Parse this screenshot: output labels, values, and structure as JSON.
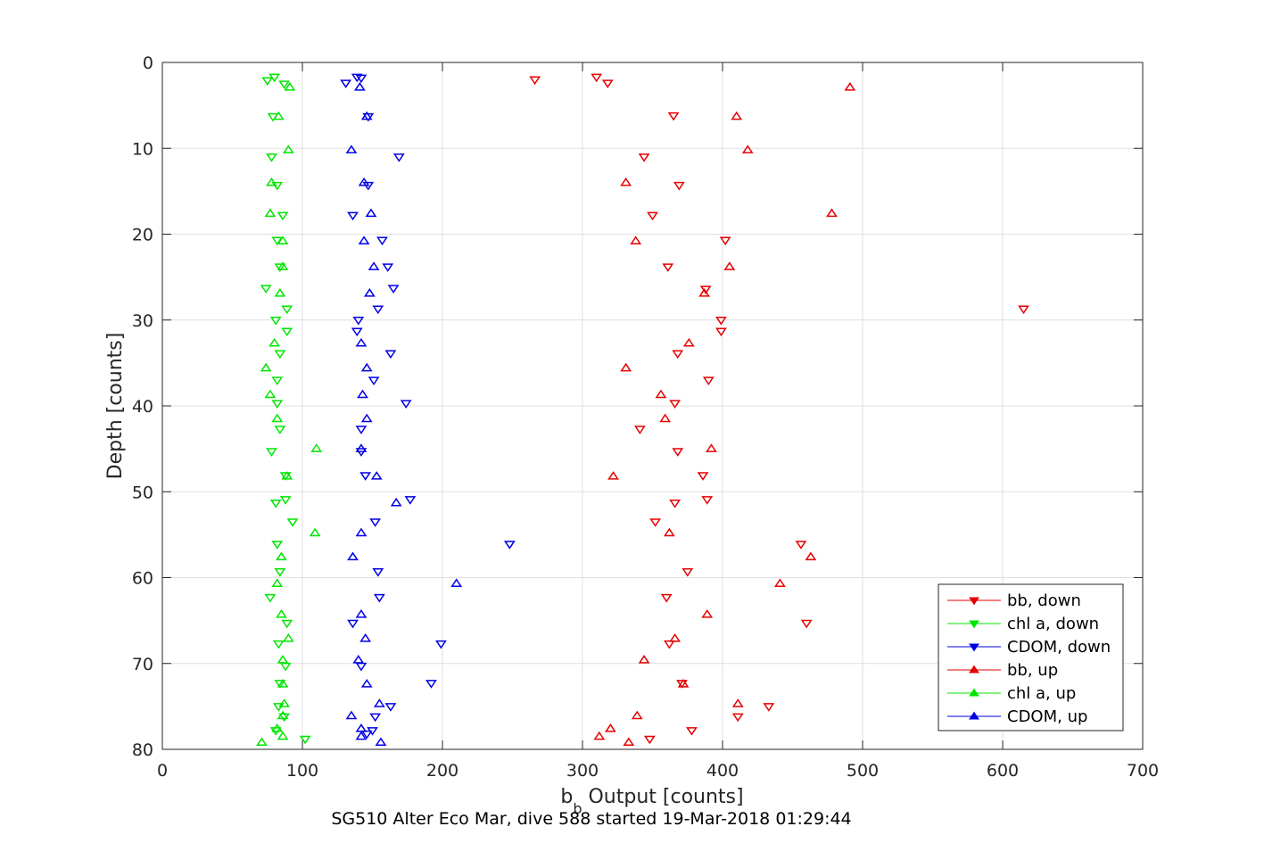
{
  "colors": {
    "bb": "#e60000",
    "chl": "#00e600",
    "cdom": "#0000e6",
    "grid": "#dfdfdf",
    "axis": "#262626"
  },
  "chart_data": {
    "type": "scatter",
    "title": "SG510 Alter Eco Mar, dive 588 started 19-Mar-2018 01:29:44",
    "xlabel_main": "b",
    "xlabel_sub": "b",
    "xlabel_rest": " Output [counts]",
    "ylabel": "Depth [counts]",
    "xlim": [
      0,
      700
    ],
    "ylim": [
      0,
      80
    ],
    "y_reversed": true,
    "grid": true,
    "legend_position": "bottom-right",
    "xticks": [
      0,
      100,
      200,
      300,
      400,
      500,
      600,
      700
    ],
    "yticks": [
      0,
      10,
      20,
      30,
      40,
      50,
      60,
      70,
      80
    ],
    "series": [
      {
        "name": "bb, down",
        "marker": "triangle-down",
        "color": "#e60000",
        "points": [
          [
            266,
            2
          ],
          [
            310,
            1.7
          ],
          [
            318,
            2.4
          ],
          [
            365,
            6.2
          ],
          [
            344,
            11
          ],
          [
            369,
            14.3
          ],
          [
            350,
            17.8
          ],
          [
            402,
            20.7
          ],
          [
            361,
            23.8
          ],
          [
            388,
            26.4
          ],
          [
            399,
            30
          ],
          [
            399,
            31.3
          ],
          [
            368,
            33.9
          ],
          [
            390,
            37
          ],
          [
            366,
            39.7
          ],
          [
            341,
            42.7
          ],
          [
            368,
            45.3
          ],
          [
            386,
            48.1
          ],
          [
            389,
            50.9
          ],
          [
            366,
            51.3
          ],
          [
            352,
            53.5
          ],
          [
            456,
            56.1
          ],
          [
            375,
            59.3
          ],
          [
            360,
            62.3
          ],
          [
            460,
            65.3
          ],
          [
            362,
            67.7
          ],
          [
            371,
            72.3
          ],
          [
            433,
            75
          ],
          [
            411,
            76.2
          ],
          [
            378,
            77.8
          ],
          [
            348,
            78.8
          ],
          [
            615,
            28.7
          ]
        ]
      },
      {
        "name": "chl a, down",
        "marker": "triangle-down",
        "color": "#00e600",
        "points": [
          [
            75,
            2.1
          ],
          [
            80,
            1.7
          ],
          [
            87,
            2.5
          ],
          [
            79,
            6.3
          ],
          [
            78,
            11
          ],
          [
            82,
            14.3
          ],
          [
            86,
            17.8
          ],
          [
            82,
            20.7
          ],
          [
            84,
            23.8
          ],
          [
            74,
            26.3
          ],
          [
            89,
            28.7
          ],
          [
            81,
            30
          ],
          [
            89,
            31.3
          ],
          [
            84,
            33.9
          ],
          [
            82,
            37
          ],
          [
            82,
            39.7
          ],
          [
            84,
            42.7
          ],
          [
            78,
            45.3
          ],
          [
            88,
            48.1
          ],
          [
            88,
            50.9
          ],
          [
            81,
            51.3
          ],
          [
            93,
            53.5
          ],
          [
            82,
            56.1
          ],
          [
            84,
            59.3
          ],
          [
            77,
            62.3
          ],
          [
            89,
            65.3
          ],
          [
            83,
            67.7
          ],
          [
            88,
            70.3
          ],
          [
            84,
            72.3
          ],
          [
            83,
            75
          ],
          [
            87,
            76.2
          ],
          [
            81,
            77.8
          ],
          [
            102,
            78.8
          ]
        ]
      },
      {
        "name": "CDOM, down",
        "marker": "triangle-down",
        "color": "#0000e6",
        "points": [
          [
            142,
            1.8
          ],
          [
            139,
            1.7
          ],
          [
            131,
            2.4
          ],
          [
            147,
            6.3
          ],
          [
            169,
            11
          ],
          [
            147,
            14.3
          ],
          [
            136,
            17.8
          ],
          [
            157,
            20.7
          ],
          [
            161,
            23.8
          ],
          [
            165,
            26.3
          ],
          [
            154,
            28.7
          ],
          [
            140,
            30
          ],
          [
            139,
            31.3
          ],
          [
            163,
            33.9
          ],
          [
            151,
            37
          ],
          [
            174,
            39.7
          ],
          [
            142,
            42.7
          ],
          [
            142,
            45.3
          ],
          [
            145,
            48.1
          ],
          [
            177,
            50.9
          ],
          [
            152,
            53.5
          ],
          [
            248,
            56.1
          ],
          [
            154,
            59.3
          ],
          [
            155,
            62.3
          ],
          [
            136,
            65.3
          ],
          [
            199,
            67.7
          ],
          [
            142,
            70.3
          ],
          [
            192,
            72.3
          ],
          [
            163,
            75
          ],
          [
            152,
            76.2
          ],
          [
            150,
            77.8
          ],
          [
            146,
            78.2
          ]
        ]
      },
      {
        "name": "bb, up",
        "marker": "triangle-up",
        "color": "#e60000",
        "points": [
          [
            491,
            2.9
          ],
          [
            410,
            6.3
          ],
          [
            418,
            10.2
          ],
          [
            331,
            14
          ],
          [
            478,
            17.6
          ],
          [
            338,
            20.8
          ],
          [
            405,
            23.8
          ],
          [
            387,
            26.9
          ],
          [
            376,
            32.7
          ],
          [
            331,
            35.6
          ],
          [
            356,
            38.7
          ],
          [
            359,
            41.5
          ],
          [
            392,
            45
          ],
          [
            322,
            48.2
          ],
          [
            362,
            54.8
          ],
          [
            463,
            57.6
          ],
          [
            441,
            60.7
          ],
          [
            389,
            64.3
          ],
          [
            366,
            67.1
          ],
          [
            344,
            69.6
          ],
          [
            372,
            72.4
          ],
          [
            411,
            74.7
          ],
          [
            339,
            76.1
          ],
          [
            320,
            77.6
          ],
          [
            312,
            78.5
          ],
          [
            333,
            79.2
          ]
        ]
      },
      {
        "name": "chl a, up",
        "marker": "triangle-up",
        "color": "#00e600",
        "points": [
          [
            91,
            2.9
          ],
          [
            83,
            6.3
          ],
          [
            90,
            10.2
          ],
          [
            78,
            14
          ],
          [
            77,
            17.6
          ],
          [
            86,
            20.8
          ],
          [
            86,
            23.8
          ],
          [
            84,
            26.9
          ],
          [
            80,
            32.7
          ],
          [
            74,
            35.6
          ],
          [
            77,
            38.7
          ],
          [
            82,
            41.5
          ],
          [
            110,
            45
          ],
          [
            89,
            48.2
          ],
          [
            109,
            54.8
          ],
          [
            85,
            57.6
          ],
          [
            82,
            60.7
          ],
          [
            85,
            64.3
          ],
          [
            90,
            67.1
          ],
          [
            86,
            69.6
          ],
          [
            86,
            72.4
          ],
          [
            87,
            74.7
          ],
          [
            86,
            76.1
          ],
          [
            82,
            77.6
          ],
          [
            86,
            78.5
          ],
          [
            71,
            79.2
          ]
        ]
      },
      {
        "name": "CDOM, up",
        "marker": "triangle-up",
        "color": "#0000e6",
        "points": [
          [
            141,
            2.9
          ],
          [
            146,
            6.3
          ],
          [
            135,
            10.2
          ],
          [
            144,
            14
          ],
          [
            149,
            17.6
          ],
          [
            144,
            20.8
          ],
          [
            151,
            23.8
          ],
          [
            148,
            26.9
          ],
          [
            142,
            32.7
          ],
          [
            146,
            35.6
          ],
          [
            143,
            38.7
          ],
          [
            146,
            41.5
          ],
          [
            142,
            45
          ],
          [
            153,
            48.2
          ],
          [
            167,
            51.3
          ],
          [
            142,
            54.8
          ],
          [
            136,
            57.6
          ],
          [
            210,
            60.7
          ],
          [
            142,
            64.3
          ],
          [
            145,
            67.1
          ],
          [
            140,
            69.6
          ],
          [
            146,
            72.4
          ],
          [
            155,
            74.7
          ],
          [
            135,
            76.1
          ],
          [
            142,
            77.6
          ],
          [
            142,
            78.5
          ],
          [
            156,
            79.2
          ]
        ]
      }
    ]
  }
}
